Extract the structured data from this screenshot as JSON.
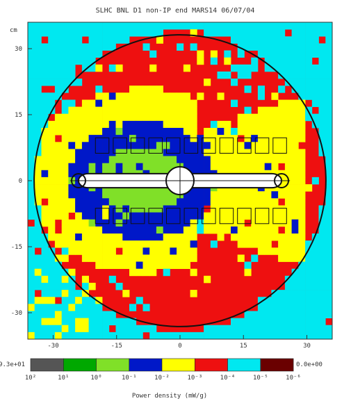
{
  "chart_data": {
    "type": "heatmap",
    "title": "SLHC BNL D1 non-IP end     MARS14   06/07/04",
    "y_unit": "cm",
    "x_ticks": [
      -30,
      -15,
      0,
      15,
      30
    ],
    "y_ticks": [
      30,
      15,
      0,
      -15,
      -30
    ],
    "xlim": [
      -36,
      36
    ],
    "ylim": [
      -36,
      36
    ],
    "colorbar": {
      "max_label": "9.3e+01",
      "min_label": "0.0e+00",
      "tick_labels": [
        "10²",
        "10¹",
        "10⁰",
        "10⁻¹",
        "10⁻²",
        "10⁻³",
        "10⁻⁴",
        "10⁻⁵",
        "10⁻⁶"
      ],
      "colors": [
        "#555555",
        "#00a800",
        "#80e028",
        "#0018c8",
        "#ffff00",
        "#ee1010",
        "#00e8f0",
        "#6a0000"
      ],
      "label": "Power density (mW/g)"
    },
    "regions": [
      {
        "zone": "beam pipe / bore",
        "color_index": 0,
        "value": "white (no data)"
      },
      {
        "zone": "near field, left",
        "log10_value": 0
      },
      {
        "zone": "inner shell, left",
        "log10_value": -1
      },
      {
        "zone": "mid shell",
        "log10_value": -2
      },
      {
        "zone": "outer shell",
        "log10_value": -3
      },
      {
        "zone": "outer corners",
        "log10_value": -4
      }
    ],
    "grid": false,
    "legend_placement": "bottom"
  }
}
